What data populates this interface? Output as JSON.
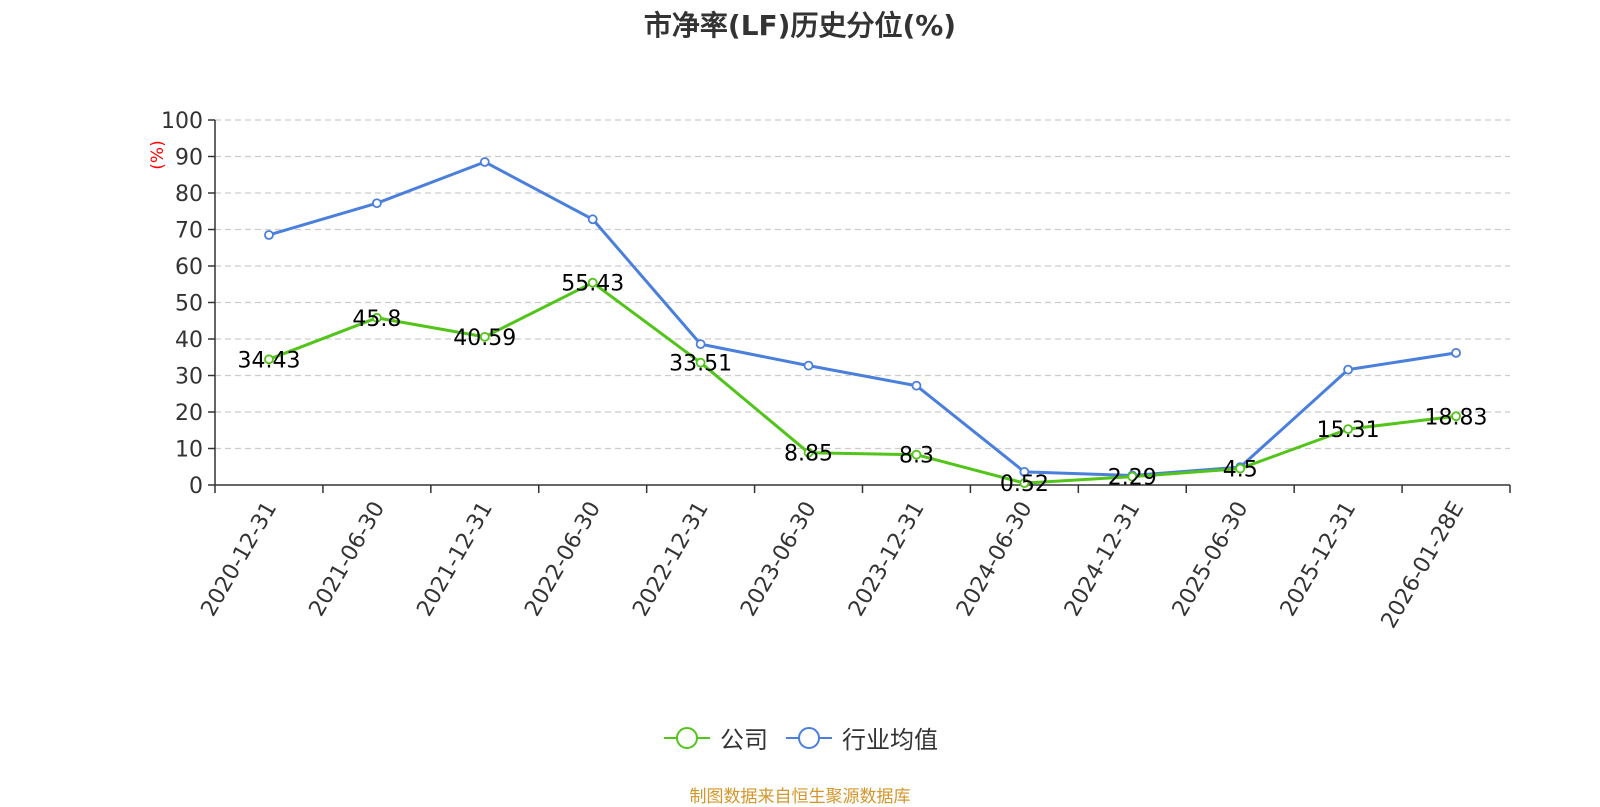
{
  "chart_data": {
    "type": "line",
    "title": "市净率(LF)历史分位(%)",
    "ylabel": "(%)",
    "ylim": [
      0,
      100
    ],
    "yticks": [
      0,
      10,
      20,
      30,
      40,
      50,
      60,
      70,
      80,
      90,
      100
    ],
    "grid": true,
    "legend_position": "bottom",
    "categories": [
      "2020-12-31",
      "2021-06-30",
      "2021-12-31",
      "2022-06-30",
      "2022-12-31",
      "2023-06-30",
      "2023-12-31",
      "2024-06-30",
      "2024-12-31",
      "2025-06-30",
      "2025-12-31",
      "2026-01-28E"
    ],
    "series": [
      {
        "name": "公司",
        "color": "#52c41a",
        "values": [
          34.43,
          45.8,
          40.59,
          55.43,
          33.51,
          8.85,
          8.3,
          0.52,
          2.29,
          4.5,
          15.31,
          18.83
        ],
        "labels": [
          "34.43",
          "45.8",
          "40.59",
          "55.43",
          "33.51",
          "8.85",
          "8.3",
          "0.52",
          "2.29",
          "4.5",
          "15.31",
          "18.83"
        ]
      },
      {
        "name": "行业均值",
        "color": "#4a7fdc",
        "values": [
          68.5,
          77.2,
          88.5,
          72.8,
          38.6,
          32.7,
          27.2,
          3.6,
          2.6,
          4.9,
          31.6,
          36.2
        ]
      }
    ]
  },
  "source_note": "制图数据来自恒生聚源数据库",
  "colors": {
    "axis": "#333333",
    "grid": "#cccccc",
    "unit_label": "#ff0000",
    "source_note": "#d4962a"
  }
}
